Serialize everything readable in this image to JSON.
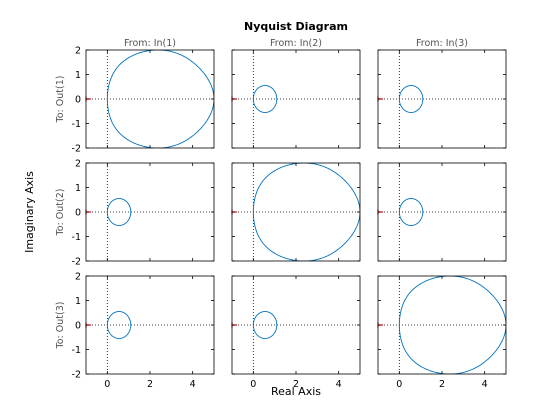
{
  "chart_data": {
    "type": "line",
    "title": "Nyquist Diagram",
    "xlabel": "Real Axis",
    "ylabel": "Imaginary Axis",
    "column_headers": [
      "From: In(1)",
      "From: In(2)",
      "From: In(3)"
    ],
    "row_headers": [
      "To: Out(1)",
      "To: Out(2)",
      "To: Out(3)"
    ],
    "xlim": [
      -1,
      5
    ],
    "ylim": [
      -2,
      2
    ],
    "xticks": [
      0,
      2,
      4
    ],
    "yticks": [
      -2,
      -1,
      0,
      1,
      2
    ],
    "xtick_labels": [
      "0",
      "2",
      "4"
    ],
    "ytick_labels": [
      "-2",
      "-1",
      "0",
      "1",
      "2"
    ],
    "grid": "dotted lines at x = 0 and y = 0",
    "critical_point": [
      -1,
      0
    ],
    "colors": {
      "curve": "#0072bd",
      "critical_point": "#ff0000",
      "axes": "#000000"
    },
    "subplots": [
      {
        "row": 1,
        "col": 1,
        "curve": "large",
        "center": [
          2.5,
          0.0
        ],
        "radius_x": 2.5,
        "radius_y": 2.0
      },
      {
        "row": 1,
        "col": 2,
        "curve": "small",
        "center": [
          0.55,
          0.0
        ],
        "radius_x": 0.55,
        "radius_y": 0.55
      },
      {
        "row": 1,
        "col": 3,
        "curve": "small",
        "center": [
          0.55,
          0.0
        ],
        "radius_x": 0.55,
        "radius_y": 0.55
      },
      {
        "row": 2,
        "col": 1,
        "curve": "small",
        "center": [
          0.55,
          0.0
        ],
        "radius_x": 0.55,
        "radius_y": 0.55
      },
      {
        "row": 2,
        "col": 2,
        "curve": "large",
        "center": [
          2.5,
          0.0
        ],
        "radius_x": 2.5,
        "radius_y": 2.0
      },
      {
        "row": 2,
        "col": 3,
        "curve": "small",
        "center": [
          0.55,
          0.0
        ],
        "radius_x": 0.55,
        "radius_y": 0.55
      },
      {
        "row": 3,
        "col": 1,
        "curve": "small",
        "center": [
          0.55,
          0.0
        ],
        "radius_x": 0.55,
        "radius_y": 0.55
      },
      {
        "row": 3,
        "col": 2,
        "curve": "small",
        "center": [
          0.55,
          0.0
        ],
        "radius_x": 0.55,
        "radius_y": 0.55
      },
      {
        "row": 3,
        "col": 3,
        "curve": "large",
        "center": [
          2.5,
          0.0
        ],
        "radius_x": 2.5,
        "radius_y": 2.0
      }
    ]
  }
}
